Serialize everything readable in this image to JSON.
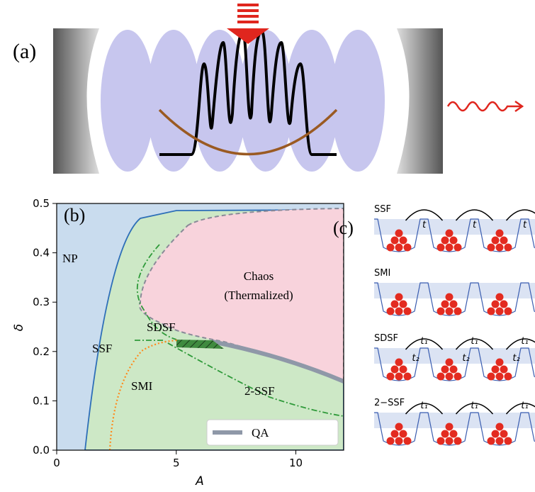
{
  "panel_a": {
    "label": "(a)"
  },
  "panel_b": {
    "label": "(b)",
    "x_label": "A",
    "y_label": "δ",
    "x_ticks": [
      "0",
      "5",
      "10"
    ],
    "y_ticks": [
      "0.0",
      "0.1",
      "0.2",
      "0.3",
      "0.4",
      "0.5"
    ],
    "regions": {
      "np": "NP",
      "chaos_1": "Chaos",
      "chaos_2": "(Thermalized)",
      "sdsf": "SDSF",
      "ssf": "SSF",
      "smi": "SMI",
      "two_ssf": "2-SSF"
    },
    "legend": "QA"
  },
  "panel_c": {
    "label": "(c)",
    "rows": [
      {
        "name": "SSF",
        "top": [
          "t",
          "t",
          "t"
        ],
        "bottom": []
      },
      {
        "name": "SMI",
        "top": [],
        "bottom": []
      },
      {
        "name": "SDSF",
        "top": [
          "t₁",
          "t₁",
          "t₁"
        ],
        "bottom": [
          "t₂",
          "t₂",
          "t₂"
        ]
      },
      {
        "name": "2−SSF",
        "top": [
          "t₁",
          "t₁",
          "t₁"
        ],
        "bottom": []
      }
    ]
  }
}
